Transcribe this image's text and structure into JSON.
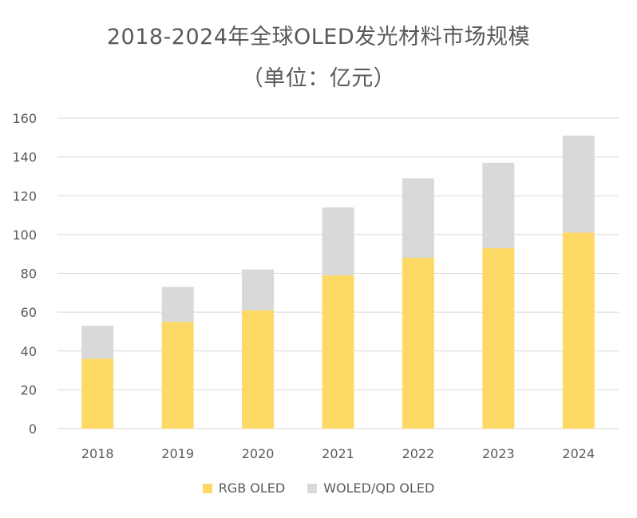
{
  "chart_data": {
    "type": "bar",
    "stacked": true,
    "title": "2018-2024年全球OLED发光材料市场规模",
    "subtitle": "（单位：亿元）",
    "categories": [
      "2018",
      "2019",
      "2020",
      "2021",
      "2022",
      "2023",
      "2024"
    ],
    "series": [
      {
        "name": "RGB OLED",
        "color": "#FFD966",
        "values": [
          36,
          55,
          61,
          79,
          88,
          93,
          101
        ]
      },
      {
        "name": "WOLED/QD OLED",
        "color": "#D9D9D9",
        "values": [
          17,
          18,
          21,
          35,
          41,
          44,
          50
        ]
      }
    ],
    "ylim": [
      0,
      160
    ],
    "yticks": [
      0,
      20,
      40,
      60,
      80,
      100,
      120,
      140,
      160
    ],
    "grid": true,
    "legend": "bottom",
    "gridColor": "#D9D9D9",
    "textColor": "#595959"
  }
}
